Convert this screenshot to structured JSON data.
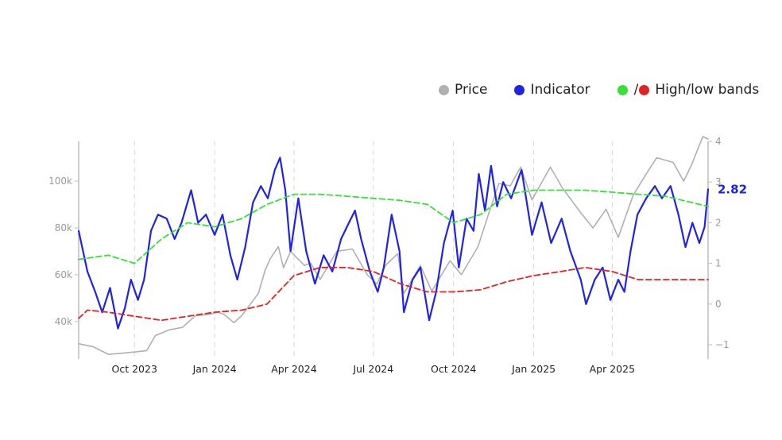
{
  "chart_data": {
    "type": "line",
    "legend_position": "top-right",
    "grid": "vertical-dashed",
    "x_range": [
      "2023-07-29",
      "2025-07-20"
    ],
    "x_ticks": [
      {
        "date": "2023-10-01",
        "label": "Oct 2023"
      },
      {
        "date": "2024-01-01",
        "label": "Jan 2024"
      },
      {
        "date": "2024-04-01",
        "label": "Apr 2024"
      },
      {
        "date": "2024-07-01",
        "label": "Jul 2024"
      },
      {
        "date": "2024-10-01",
        "label": "Oct 2024"
      },
      {
        "date": "2025-01-01",
        "label": "Jan 2025"
      },
      {
        "date": "2025-04-01",
        "label": "Apr 2025"
      }
    ],
    "left_axis": {
      "range": [
        24000,
        117000
      ],
      "ticks": [
        {
          "value": 40000,
          "label": "40k"
        },
        {
          "value": 60000,
          "label": "60k"
        },
        {
          "value": 80000,
          "label": "80k"
        },
        {
          "value": 100000,
          "label": "100k"
        }
      ]
    },
    "right_axis": {
      "range": [
        -1.35,
        4
      ],
      "ticks": [
        {
          "value": -1,
          "label": "−1"
        },
        {
          "value": 0,
          "label": "0"
        },
        {
          "value": 1,
          "label": "1"
        },
        {
          "value": 2,
          "label": "2"
        },
        {
          "value": 3,
          "label": "3"
        },
        {
          "value": 4,
          "label": "4"
        }
      ]
    },
    "legend": {
      "price": "Price",
      "indicator": "Indicator",
      "separator": "/",
      "bands": "High/low bands"
    },
    "last_value_label": "2.82",
    "series": [
      {
        "name": "Price",
        "axis": "left",
        "color": "#b0b0b0",
        "points": [
          [
            "2023-07-29",
            30500
          ],
          [
            "2023-08-15",
            29200
          ],
          [
            "2023-09-01",
            26000
          ],
          [
            "2023-09-15",
            26400
          ],
          [
            "2023-10-01",
            27000
          ],
          [
            "2023-10-15",
            27600
          ],
          [
            "2023-10-25",
            34000
          ],
          [
            "2023-11-10",
            36500
          ],
          [
            "2023-11-25",
            37500
          ],
          [
            "2023-12-10",
            42500
          ],
          [
            "2023-12-25",
            43000
          ],
          [
            "2024-01-05",
            44000
          ],
          [
            "2024-01-12",
            43000
          ],
          [
            "2024-01-23",
            39500
          ],
          [
            "2024-02-01",
            42500
          ],
          [
            "2024-02-12",
            48000
          ],
          [
            "2024-02-20",
            52000
          ],
          [
            "2024-02-28",
            62000
          ],
          [
            "2024-03-05",
            67000
          ],
          [
            "2024-03-14",
            72000
          ],
          [
            "2024-03-20",
            63000
          ],
          [
            "2024-03-28",
            70000
          ],
          [
            "2024-04-13",
            64000
          ],
          [
            "2024-04-20",
            65000
          ],
          [
            "2024-05-01",
            58000
          ],
          [
            "2024-05-20",
            70000
          ],
          [
            "2024-06-07",
            71000
          ],
          [
            "2024-06-24",
            60000
          ],
          [
            "2024-07-05",
            56000
          ],
          [
            "2024-07-15",
            64000
          ],
          [
            "2024-07-29",
            69000
          ],
          [
            "2024-08-05",
            52000
          ],
          [
            "2024-08-24",
            64000
          ],
          [
            "2024-09-06",
            53000
          ],
          [
            "2024-09-27",
            66000
          ],
          [
            "2024-10-10",
            60000
          ],
          [
            "2024-10-29",
            72000
          ],
          [
            "2024-11-12",
            88000
          ],
          [
            "2024-11-22",
            99000
          ],
          [
            "2024-12-05",
            98000
          ],
          [
            "2024-12-17",
            106000
          ],
          [
            "2024-12-30",
            92000
          ],
          [
            "2025-01-20",
            106000
          ],
          [
            "2025-02-03",
            97000
          ],
          [
            "2025-02-25",
            86000
          ],
          [
            "2025-03-10",
            80000
          ],
          [
            "2025-03-25",
            88000
          ],
          [
            "2025-04-08",
            76000
          ],
          [
            "2025-04-25",
            94000
          ],
          [
            "2025-05-10",
            103000
          ],
          [
            "2025-05-22",
            110000
          ],
          [
            "2025-06-10",
            108000
          ],
          [
            "2025-06-22",
            100000
          ],
          [
            "2025-07-01",
            107000
          ],
          [
            "2025-07-14",
            121000
          ],
          [
            "2025-07-20",
            118000
          ]
        ]
      },
      {
        "name": "Indicator",
        "axis": "right",
        "color": "#1f22e8",
        "points": [
          [
            "2023-07-29",
            1.8
          ],
          [
            "2023-08-08",
            0.8
          ],
          [
            "2023-08-17",
            0.3
          ],
          [
            "2023-08-25",
            -0.2
          ],
          [
            "2023-09-03",
            0.4
          ],
          [
            "2023-09-12",
            -0.6
          ],
          [
            "2023-09-20",
            -0.1
          ],
          [
            "2023-09-27",
            0.6
          ],
          [
            "2023-10-05",
            0.1
          ],
          [
            "2023-10-12",
            0.6
          ],
          [
            "2023-10-20",
            1.8
          ],
          [
            "2023-10-28",
            2.2
          ],
          [
            "2023-11-07",
            2.1
          ],
          [
            "2023-11-16",
            1.6
          ],
          [
            "2023-11-24",
            2.0
          ],
          [
            "2023-12-05",
            2.8
          ],
          [
            "2023-12-13",
            2.0
          ],
          [
            "2023-12-22",
            2.2
          ],
          [
            "2024-01-01",
            1.7
          ],
          [
            "2024-01-10",
            2.2
          ],
          [
            "2024-01-19",
            1.2
          ],
          [
            "2024-01-27",
            0.6
          ],
          [
            "2024-02-05",
            1.4
          ],
          [
            "2024-02-14",
            2.5
          ],
          [
            "2024-02-23",
            2.9
          ],
          [
            "2024-03-02",
            2.6
          ],
          [
            "2024-03-10",
            3.3
          ],
          [
            "2024-03-16",
            3.6
          ],
          [
            "2024-03-22",
            2.8
          ],
          [
            "2024-03-28",
            1.3
          ],
          [
            "2024-04-06",
            2.6
          ],
          [
            "2024-04-15",
            1.3
          ],
          [
            "2024-04-25",
            0.5
          ],
          [
            "2024-05-05",
            1.2
          ],
          [
            "2024-05-15",
            0.8
          ],
          [
            "2024-05-25",
            1.6
          ],
          [
            "2024-06-03",
            2.0
          ],
          [
            "2024-06-10",
            2.3
          ],
          [
            "2024-06-17",
            1.6
          ],
          [
            "2024-06-27",
            0.8
          ],
          [
            "2024-07-06",
            0.3
          ],
          [
            "2024-07-13",
            0.9
          ],
          [
            "2024-07-22",
            2.2
          ],
          [
            "2024-07-31",
            1.3
          ],
          [
            "2024-08-05",
            -0.2
          ],
          [
            "2024-08-15",
            0.6
          ],
          [
            "2024-08-24",
            0.9
          ],
          [
            "2024-09-03",
            -0.4
          ],
          [
            "2024-09-11",
            0.3
          ],
          [
            "2024-09-20",
            1.5
          ],
          [
            "2024-09-30",
            2.3
          ],
          [
            "2024-10-07",
            0.9
          ],
          [
            "2024-10-16",
            2.1
          ],
          [
            "2024-10-24",
            1.8
          ],
          [
            "2024-10-30",
            3.2
          ],
          [
            "2024-11-06",
            2.3
          ],
          [
            "2024-11-13",
            3.4
          ],
          [
            "2024-11-20",
            2.4
          ],
          [
            "2024-11-27",
            3.0
          ],
          [
            "2024-12-06",
            2.6
          ],
          [
            "2024-12-18",
            3.3
          ],
          [
            "2024-12-30",
            1.7
          ],
          [
            "2025-01-10",
            2.5
          ],
          [
            "2025-01-21",
            1.5
          ],
          [
            "2025-02-02",
            2.1
          ],
          [
            "2025-02-12",
            1.3
          ],
          [
            "2025-02-24",
            0.6
          ],
          [
            "2025-03-02",
            0.0
          ],
          [
            "2025-03-12",
            0.6
          ],
          [
            "2025-03-21",
            0.9
          ],
          [
            "2025-03-30",
            0.1
          ],
          [
            "2025-04-08",
            0.6
          ],
          [
            "2025-04-15",
            0.3
          ],
          [
            "2025-04-22",
            1.3
          ],
          [
            "2025-04-30",
            2.2
          ],
          [
            "2025-05-10",
            2.6
          ],
          [
            "2025-05-20",
            2.9
          ],
          [
            "2025-05-28",
            2.6
          ],
          [
            "2025-06-07",
            2.9
          ],
          [
            "2025-06-16",
            2.2
          ],
          [
            "2025-06-24",
            1.4
          ],
          [
            "2025-07-02",
            2.0
          ],
          [
            "2025-07-10",
            1.5
          ],
          [
            "2025-07-16",
            1.9
          ],
          [
            "2025-07-20",
            2.82
          ]
        ]
      },
      {
        "name": "High band",
        "axis": "right",
        "color": "#33e233",
        "dash": true,
        "points": [
          [
            "2023-07-29",
            1.1
          ],
          [
            "2023-09-01",
            1.2
          ],
          [
            "2023-10-01",
            1.0
          ],
          [
            "2023-11-01",
            1.6
          ],
          [
            "2023-12-01",
            2.0
          ],
          [
            "2024-01-01",
            1.9
          ],
          [
            "2024-02-01",
            2.1
          ],
          [
            "2024-03-01",
            2.45
          ],
          [
            "2024-04-01",
            2.7
          ],
          [
            "2024-05-01",
            2.7
          ],
          [
            "2024-06-01",
            2.65
          ],
          [
            "2024-07-01",
            2.6
          ],
          [
            "2024-08-01",
            2.55
          ],
          [
            "2024-09-01",
            2.45
          ],
          [
            "2024-10-01",
            2.0
          ],
          [
            "2024-11-01",
            2.2
          ],
          [
            "2024-12-01",
            2.7
          ],
          [
            "2025-01-01",
            2.8
          ],
          [
            "2025-02-01",
            2.8
          ],
          [
            "2025-03-01",
            2.8
          ],
          [
            "2025-04-01",
            2.75
          ],
          [
            "2025-05-01",
            2.7
          ],
          [
            "2025-06-01",
            2.65
          ],
          [
            "2025-07-20",
            2.4
          ]
        ]
      },
      {
        "name": "Low band",
        "axis": "right",
        "color": "#e52222",
        "dash": true,
        "points": [
          [
            "2023-07-29",
            -0.35
          ],
          [
            "2023-08-08",
            -0.15
          ],
          [
            "2023-09-01",
            -0.2
          ],
          [
            "2023-10-01",
            -0.3
          ],
          [
            "2023-11-01",
            -0.4
          ],
          [
            "2023-12-01",
            -0.3
          ],
          [
            "2024-01-01",
            -0.2
          ],
          [
            "2024-02-01",
            -0.15
          ],
          [
            "2024-03-01",
            0.0
          ],
          [
            "2024-04-01",
            0.7
          ],
          [
            "2024-05-01",
            0.9
          ],
          [
            "2024-06-01",
            0.9
          ],
          [
            "2024-07-01",
            0.8
          ],
          [
            "2024-08-01",
            0.5
          ],
          [
            "2024-09-01",
            0.3
          ],
          [
            "2024-10-01",
            0.3
          ],
          [
            "2024-11-01",
            0.35
          ],
          [
            "2024-12-01",
            0.55
          ],
          [
            "2025-01-01",
            0.7
          ],
          [
            "2025-02-01",
            0.8
          ],
          [
            "2025-03-01",
            0.9
          ],
          [
            "2025-04-01",
            0.8
          ],
          [
            "2025-05-01",
            0.6
          ],
          [
            "2025-07-20",
            0.6
          ]
        ]
      }
    ]
  }
}
